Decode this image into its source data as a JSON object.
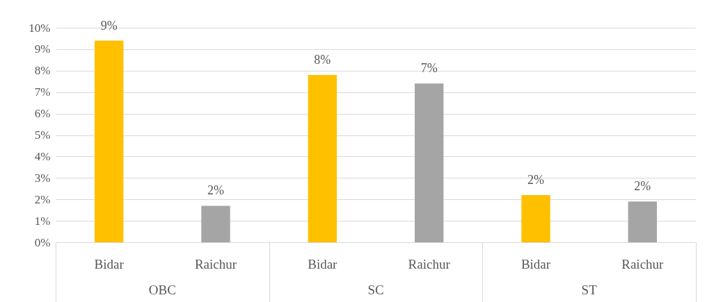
{
  "chart_data": {
    "type": "bar",
    "categories": [
      "OBC",
      "SC",
      "ST"
    ],
    "series": [
      {
        "name": "Bidar",
        "color": "#ffc000",
        "values": [
          9.4,
          7.8,
          2.2
        ],
        "value_labels": [
          "9%",
          "8%",
          "2%"
        ]
      },
      {
        "name": "Raichur",
        "color": "#a5a5a5",
        "values": [
          1.7,
          7.4,
          1.9
        ],
        "value_labels": [
          "2%",
          "7%",
          "2%"
        ]
      }
    ],
    "ylim": [
      0,
      10
    ],
    "yticks": [
      {
        "value": 0,
        "label": "0%"
      },
      {
        "value": 1,
        "label": "1%"
      },
      {
        "value": 2,
        "label": "2%"
      },
      {
        "value": 3,
        "label": "3%"
      },
      {
        "value": 4,
        "label": "4%"
      },
      {
        "value": 5,
        "label": "5%"
      },
      {
        "value": 6,
        "label": "6%"
      },
      {
        "value": 7,
        "label": "7%"
      },
      {
        "value": 8,
        "label": "8%"
      },
      {
        "value": 9,
        "label": "9%"
      },
      {
        "value": 10,
        "label": "10%"
      }
    ],
    "grid": "y",
    "legend": false
  }
}
